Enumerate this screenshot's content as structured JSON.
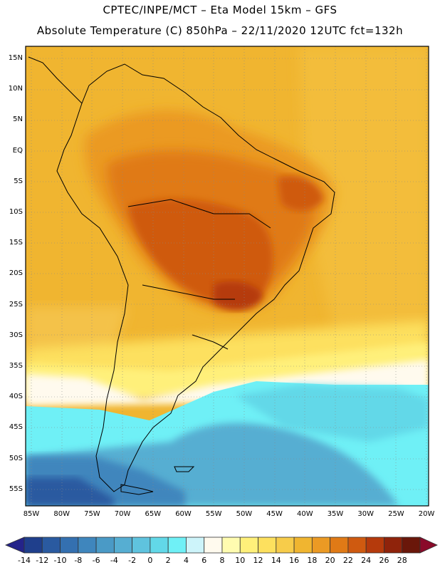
{
  "title": {
    "line1": "CPTEC/INPE/MCT –  Eta Model 15km – GFS",
    "line2": "Absolute Temperature (C) 850hPa – 22/11/2020 12UTC fct=132h"
  },
  "axes": {
    "lat_labels": [
      "15N",
      "10N",
      "5N",
      "EQ",
      "5S",
      "10S",
      "15S",
      "20S",
      "25S",
      "30S",
      "35S",
      "40S",
      "45S",
      "50S",
      "55S"
    ],
    "lon_labels": [
      "85W",
      "80W",
      "75W",
      "70W",
      "65W",
      "60W",
      "55W",
      "50W",
      "45W",
      "40W",
      "35W",
      "30W",
      "25W",
      "20W"
    ]
  },
  "colorbar": {
    "labels": [
      "-14",
      "-12",
      "-10",
      "-8",
      "-6",
      "-4",
      "-2",
      "0",
      "2",
      "4",
      "6",
      "8",
      "10",
      "12",
      "14",
      "16",
      "18",
      "20",
      "22",
      "24",
      "26",
      "28"
    ],
    "colors": [
      "#1f3f8c",
      "#2a5aa0",
      "#3470b0",
      "#3f86bd",
      "#4a9ac6",
      "#56aed2",
      "#5fc3de",
      "#62d8e8",
      "#6ff0f6",
      "#cdf4fa",
      "#fffaee",
      "#fffcb0",
      "#fff07a",
      "#fde05e",
      "#f7cc4a",
      "#f0b530",
      "#eb9a24",
      "#e07a16",
      "#cf5a10",
      "#b53a0c",
      "#8f230b",
      "#6a170a"
    ]
  }
}
